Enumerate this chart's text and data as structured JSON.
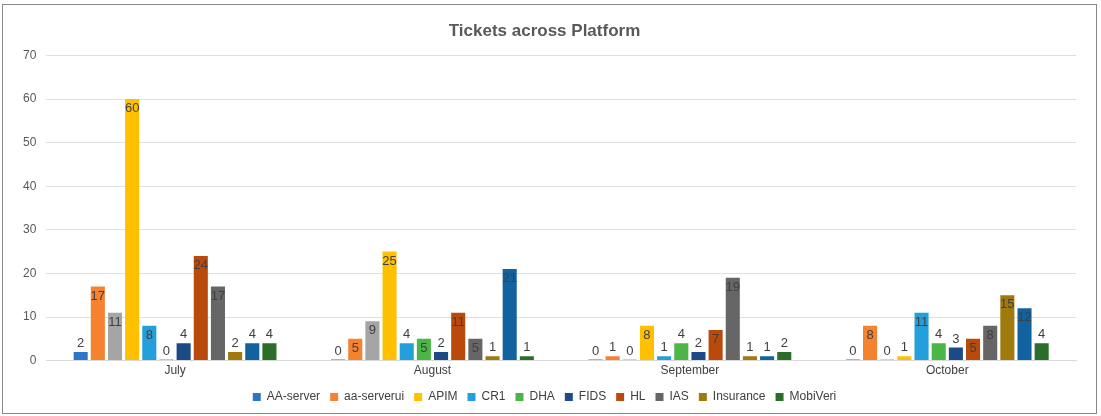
{
  "chart_data": {
    "type": "bar",
    "title": "Tickets across Platform",
    "categories": [
      "July",
      "August",
      "September",
      "October"
    ],
    "series": [
      {
        "name": "AA-server",
        "color": "#2e75c8",
        "values": [
          2,
          0,
          0,
          0
        ]
      },
      {
        "name": "aa-serverui",
        "color": "#f5822e",
        "values": [
          17,
          5,
          1,
          8
        ]
      },
      {
        "color": "#a5a5a5",
        "values": [
          11,
          9,
          0,
          0
        ]
      },
      {
        "name": "APIM",
        "color": "#ffc000",
        "values": [
          60,
          25,
          8,
          1
        ]
      },
      {
        "name": "CR1",
        "color": "#23a0dc",
        "values": [
          8,
          4,
          1,
          11
        ]
      },
      {
        "name": "DHA",
        "color": "#4cb547",
        "values": [
          0,
          5,
          4,
          4
        ]
      },
      {
        "name": "FIDS",
        "color": "#1c4a85",
        "values": [
          4,
          2,
          2,
          3
        ]
      },
      {
        "name": "HL",
        "color": "#b94a0c",
        "values": [
          24,
          11,
          7,
          5
        ]
      },
      {
        "name": "IAS",
        "color": "#666666",
        "values": [
          17,
          5,
          19,
          8
        ]
      },
      {
        "name": "Insurance",
        "color": "#a07a0c",
        "values": [
          2,
          1,
          1,
          15
        ]
      },
      {
        "color": "#10639e",
        "values": [
          4,
          21,
          1,
          12
        ]
      },
      {
        "name": "MobiVeri",
        "color": "#2a6e2a",
        "values": [
          4,
          1,
          2,
          4
        ]
      }
    ],
    "ylim": [
      0,
      70
    ],
    "yticks": [
      0,
      10,
      20,
      30,
      40,
      50,
      60,
      70
    ],
    "grid": "y",
    "legend": "bottom",
    "data_labels": true
  }
}
